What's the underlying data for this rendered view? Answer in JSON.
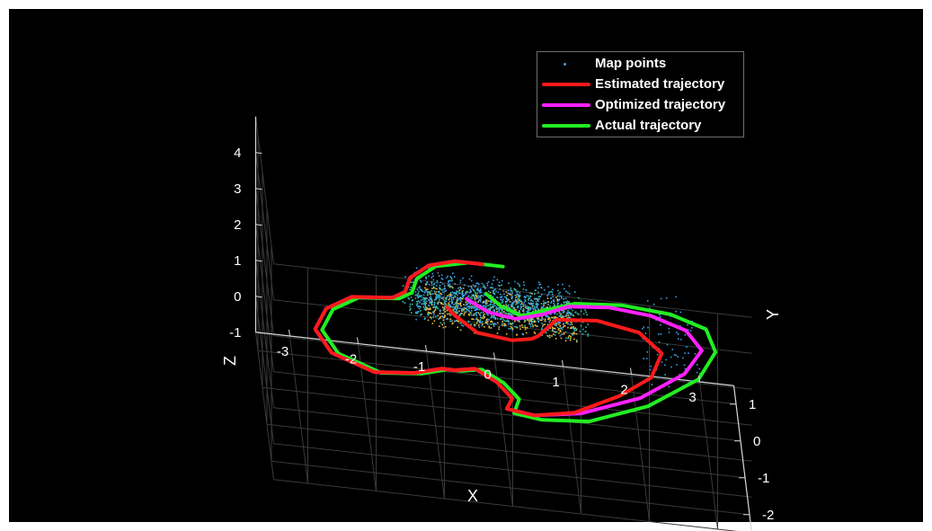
{
  "chart_data": {
    "type": "scatter",
    "title": "",
    "xlabel": "X",
    "ylabel": "Y",
    "zlabel": "Z",
    "xlim": [
      -3.5,
      3.5
    ],
    "ylim": [
      -2.5,
      1.5
    ],
    "zlim": [
      -1,
      5
    ],
    "x_ticks": [
      "-3",
      "-2",
      "-1",
      "0",
      "1",
      "2",
      "3"
    ],
    "y_ticks": [
      "-2",
      "-1",
      "0",
      "1"
    ],
    "z_ticks": [
      "-1",
      "0",
      "1",
      "2",
      "3",
      "4"
    ],
    "grid": true,
    "legend_position": "top-right",
    "background_color": "#000000",
    "map_point_colors": [
      "#f0c040",
      "#2fc0b0",
      "#3c9ee8"
    ],
    "series": [
      {
        "name": "Map points",
        "type": "scatter",
        "color": "#3c9ee8",
        "clusters": [
          {
            "x": [
              -1.2,
              1.0
            ],
            "y": [
              -1.6,
              -0.9
            ],
            "z": [
              2.8,
              3.4
            ],
            "color": "#f0c040"
          },
          {
            "x": [
              -1.5,
              1.2
            ],
            "y": [
              -1.2,
              -0.4
            ],
            "z": [
              2.5,
              3.1
            ],
            "color": "#2fc0b0"
          },
          {
            "x": [
              -1.3,
              1.0
            ],
            "y": [
              -0.6,
              0.3
            ],
            "z": [
              1.9,
              2.6
            ],
            "color": "#3c9ee8"
          },
          {
            "x": [
              2.0,
              2.8
            ],
            "y": [
              -1.8,
              0.2
            ],
            "z": [
              2.0,
              2.8
            ],
            "color": "#3c9ee8"
          }
        ]
      },
      {
        "name": "Estimated trajectory",
        "type": "line",
        "color": "#ff1a1a",
        "x": [
          -0.2,
          -0.6,
          -1.0,
          -1.3,
          -1.4,
          -1.6,
          -2.2,
          -2.6,
          -2.8,
          -2.6,
          -2.0,
          -1.4,
          -1.0,
          -0.8,
          -0.5,
          -0.2,
          0.0,
          -0.1,
          0.3,
          0.9,
          1.6,
          2.1,
          2.3,
          2.0,
          1.4,
          0.8,
          0.5,
          0.4,
          0.1,
          -0.4,
          -0.7,
          -0.8
        ],
        "y": [
          1.2,
          1.2,
          1.0,
          0.6,
          0.2,
          0.0,
          -0.1,
          -0.5,
          -1.1,
          -1.7,
          -2.1,
          -2.0,
          -1.8,
          -1.8,
          -1.7,
          -2.0,
          -2.4,
          -2.7,
          -2.8,
          -2.6,
          -2.0,
          -1.4,
          -0.7,
          -0.2,
          0.0,
          -0.1,
          -0.6,
          -0.7,
          -0.8,
          -0.7,
          -0.3,
          -0.1
        ],
        "z": [
          1.9,
          1.9,
          1.9,
          1.9,
          1.9,
          1.9,
          1.9,
          1.9,
          1.9,
          1.9,
          1.9,
          1.9,
          1.9,
          1.9,
          1.9,
          1.9,
          1.9,
          1.9,
          1.9,
          1.9,
          1.9,
          1.9,
          1.9,
          1.9,
          1.9,
          1.9,
          1.9,
          1.9,
          1.9,
          1.9,
          1.9,
          1.9
        ]
      },
      {
        "name": "Optimized trajectory",
        "type": "line",
        "color": "#ff22ff",
        "x": [
          -0.2,
          -0.6,
          -1.0,
          -1.3,
          -1.4,
          -1.6,
          -2.2,
          -2.6,
          -2.8,
          -2.6,
          -2.0,
          -1.4,
          -1.0,
          -0.8,
          -0.5,
          -0.2,
          0.0,
          -0.1,
          0.3,
          1.0,
          1.9,
          2.6,
          2.9,
          2.7,
          2.2,
          1.6,
          1.0,
          0.6,
          0.2,
          -0.2,
          -0.5
        ],
        "y": [
          1.2,
          1.2,
          1.0,
          0.6,
          0.2,
          0.0,
          -0.1,
          -0.5,
          -1.1,
          -1.7,
          -2.1,
          -2.0,
          -1.8,
          -1.8,
          -1.7,
          -2.0,
          -2.4,
          -2.7,
          -2.8,
          -2.6,
          -2.0,
          -1.2,
          -0.5,
          0.0,
          0.3,
          0.4,
          0.3,
          0.0,
          -0.2,
          -0.1,
          0.2
        ],
        "z": [
          1.9,
          1.9,
          1.9,
          1.9,
          1.9,
          1.9,
          1.9,
          1.9,
          1.9,
          1.9,
          1.9,
          1.9,
          1.9,
          1.9,
          1.9,
          1.9,
          1.9,
          1.9,
          1.9,
          1.9,
          1.9,
          1.9,
          1.9,
          1.9,
          1.9,
          1.9,
          1.9,
          1.9,
          1.9,
          1.9,
          1.9
        ]
      },
      {
        "name": "Actual trajectory",
        "type": "line",
        "color": "#22ee22",
        "x": [
          0.1,
          -0.4,
          -0.9,
          -1.2,
          -1.3,
          -1.5,
          -2.1,
          -2.5,
          -2.7,
          -2.5,
          -1.9,
          -1.3,
          -0.9,
          -0.7,
          -0.4,
          -0.1,
          0.1,
          0.0,
          0.4,
          1.1,
          2.0,
          2.8,
          3.1,
          3.0,
          2.5,
          1.8,
          1.1,
          0.6,
          0.3,
          0.0,
          -0.2
        ],
        "y": [
          1.2,
          1.2,
          1.0,
          0.6,
          0.2,
          0.0,
          -0.1,
          -0.5,
          -1.1,
          -1.7,
          -2.1,
          -2.0,
          -1.8,
          -1.8,
          -1.7,
          -2.0,
          -2.4,
          -2.8,
          -2.9,
          -2.8,
          -2.2,
          -1.3,
          -0.5,
          0.1,
          0.4,
          0.5,
          0.4,
          0.1,
          -0.1,
          0.1,
          0.4
        ],
        "z": [
          1.9,
          1.9,
          1.9,
          1.9,
          1.9,
          1.9,
          1.9,
          1.9,
          1.9,
          1.9,
          1.9,
          1.9,
          1.9,
          1.9,
          1.9,
          1.9,
          1.9,
          1.9,
          1.9,
          1.9,
          1.9,
          1.9,
          1.9,
          1.9,
          1.9,
          1.9,
          1.9,
          1.9,
          1.9,
          1.9,
          1.9
        ]
      }
    ]
  }
}
